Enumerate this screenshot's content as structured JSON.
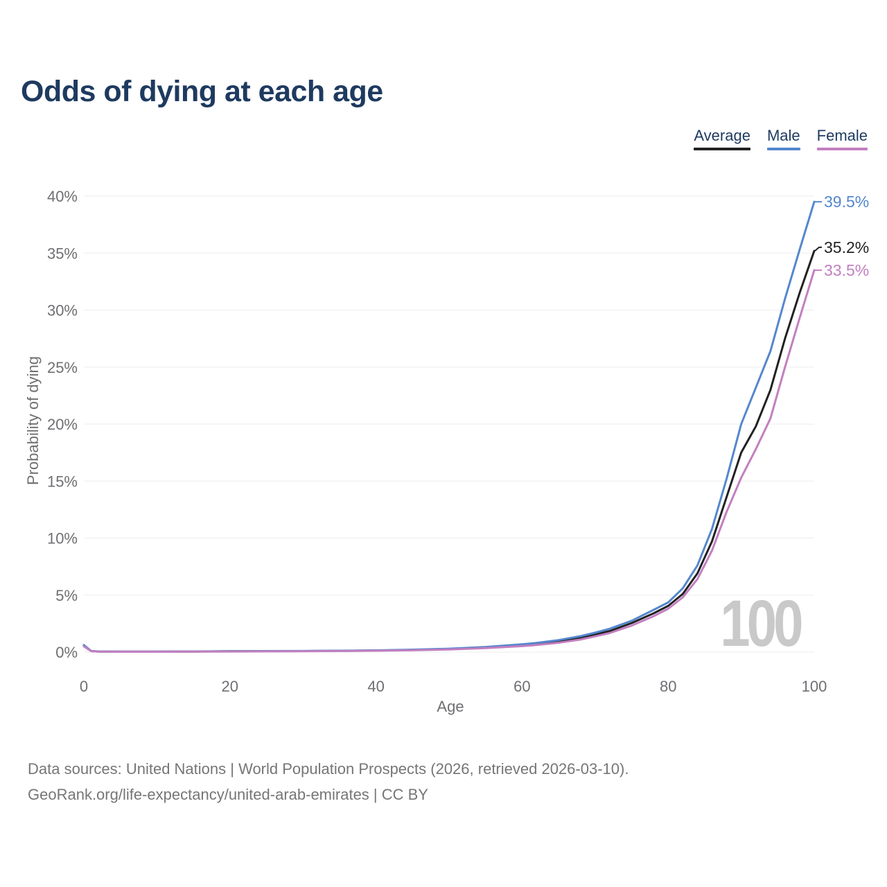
{
  "title": "Odds of dying at each age",
  "legend": [
    {
      "label": "Average",
      "color": "#222222"
    },
    {
      "label": "Male",
      "color": "#5587cd"
    },
    {
      "label": "Female",
      "color": "#c27fc0"
    }
  ],
  "colors": {
    "title": "#1e3a5f",
    "tick": "#6f6f73",
    "grid": "#ededf1",
    "footer": "#767676",
    "watermark": "#c9c9c9",
    "background": "#ffffff"
  },
  "chart_data": {
    "type": "line",
    "title": "Odds of dying at each age",
    "xlabel": "Age",
    "ylabel": "Probability of dying",
    "xlim": [
      0,
      100
    ],
    "ylim": [
      0,
      40
    ],
    "x_ticks": [
      0,
      20,
      40,
      60,
      80,
      100
    ],
    "y_ticks": [
      "0%",
      "5%",
      "10%",
      "15%",
      "20%",
      "25%",
      "30%",
      "35%",
      "40%"
    ],
    "grid": "horizontal",
    "legend_position": "top-right",
    "watermark": "100",
    "unit": "%",
    "ages": [
      0,
      1,
      2,
      5,
      10,
      15,
      20,
      25,
      30,
      35,
      40,
      45,
      50,
      55,
      60,
      62,
      65,
      68,
      70,
      72,
      75,
      78,
      80,
      82,
      84,
      86,
      88,
      90,
      92,
      94,
      96,
      98,
      100
    ],
    "series": [
      {
        "name": "Average",
        "color": "#222222",
        "end_label": "35.2%",
        "end_value": 35.2,
        "values": [
          0.56,
          0.09,
          0.05,
          0.035,
          0.035,
          0.05,
          0.07,
          0.08,
          0.09,
          0.11,
          0.14,
          0.19,
          0.27,
          0.41,
          0.6,
          0.72,
          0.95,
          1.27,
          1.55,
          1.85,
          2.55,
          3.4,
          4.05,
          5.1,
          6.9,
          9.7,
          13.6,
          17.5,
          19.8,
          23.0,
          27.5,
          31.5,
          35.2
        ]
      },
      {
        "name": "Male",
        "color": "#5587cd",
        "end_label": "39.5%",
        "end_value": 39.5,
        "values": [
          0.62,
          0.1,
          0.06,
          0.04,
          0.04,
          0.06,
          0.08,
          0.09,
          0.1,
          0.12,
          0.15,
          0.21,
          0.3,
          0.45,
          0.68,
          0.8,
          1.05,
          1.4,
          1.7,
          2.05,
          2.75,
          3.7,
          4.35,
          5.6,
          7.6,
          10.8,
          15.2,
          20.0,
          23.2,
          26.4,
          31.0,
          35.3,
          39.5
        ]
      },
      {
        "name": "Female",
        "color": "#c27fc0",
        "end_label": "33.5%",
        "end_value": 33.5,
        "values": [
          0.5,
          0.08,
          0.045,
          0.03,
          0.03,
          0.04,
          0.05,
          0.06,
          0.07,
          0.09,
          0.12,
          0.16,
          0.23,
          0.35,
          0.52,
          0.62,
          0.82,
          1.1,
          1.38,
          1.67,
          2.32,
          3.15,
          3.8,
          4.8,
          6.4,
          8.9,
          12.3,
          15.3,
          17.8,
          20.5,
          25.0,
          29.3,
          33.5
        ]
      }
    ]
  },
  "footer": {
    "line1": "Data sources: United Nations | World Population Prospects (2026, retrieved 2026-03-10).",
    "line2": "GeoRank.org/life-expectancy/united-arab-emirates | CC BY"
  }
}
